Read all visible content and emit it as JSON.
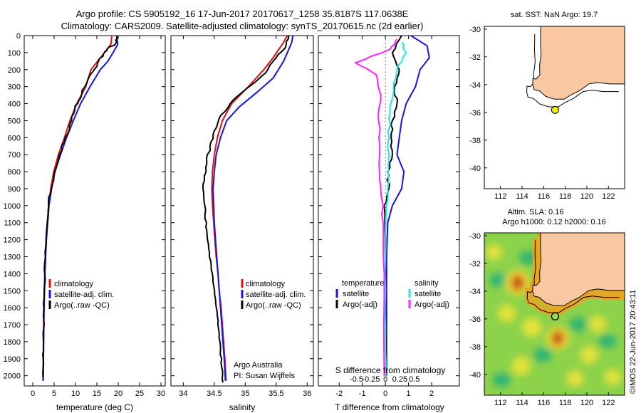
{
  "header": {
    "line1": "Argo profile: CS 5905192_16 17-Jun-2017 20170617_1258 35.8187S 117.0638E",
    "line2": "Climatology: CARS2009. Satellite-adjusted climatology: synTS_20170615.nc (2d earlier)"
  },
  "colors": {
    "climatology": "#e01010",
    "satellite": "#1515e0",
    "argo": "#000000",
    "salinity_sat": "#22e8e8",
    "salinity_argo": "#ff22ff",
    "land": "#fac8a0",
    "float_marker": "#f2f000"
  },
  "chart_data": [
    {
      "type": "line",
      "id": "temperature-panel",
      "xlabel": "temperature (deg C)",
      "xlim": [
        -2,
        31
      ],
      "ylim": [
        0,
        2060
      ],
      "y_inverted": true,
      "xticks": [
        "0",
        "5",
        "10",
        "15",
        "20",
        "25",
        "30"
      ],
      "yticks": [
        "0",
        "100",
        "200",
        "300",
        "400",
        "500",
        "600",
        "700",
        "800",
        "900",
        "1000",
        "1100",
        "1200",
        "1300",
        "1400",
        "1500",
        "1600",
        "1700",
        "1800",
        "1900",
        "2000"
      ],
      "legend": [
        "climatology",
        "satellite-adj. clim.",
        "Argo(..raw -QC)"
      ],
      "series": [
        {
          "name": "climatology",
          "color": "#e01010",
          "points": [
            [
              18.5,
              0
            ],
            [
              18.3,
              50
            ],
            [
              16.8,
              100
            ],
            [
              15.2,
              150
            ],
            [
              13.6,
              200
            ],
            [
              12.4,
              300
            ],
            [
              10.3,
              400
            ],
            [
              8.7,
              500
            ],
            [
              7.4,
              600
            ],
            [
              6.0,
              700
            ],
            [
              4.9,
              800
            ],
            [
              4.2,
              900
            ],
            [
              3.7,
              1000
            ],
            [
              3.4,
              1100
            ],
            [
              3.1,
              1200
            ],
            [
              2.95,
              1300
            ],
            [
              2.8,
              1400
            ],
            [
              2.7,
              1500
            ],
            [
              2.6,
              1600
            ],
            [
              2.5,
              1800
            ],
            [
              2.45,
              1900
            ],
            [
              2.4,
              2030
            ]
          ]
        },
        {
          "name": "satellite-adj. clim.",
          "color": "#1515e0",
          "points": [
            [
              19.6,
              0
            ],
            [
              19.9,
              50
            ],
            [
              18.8,
              100
            ],
            [
              17.6,
              150
            ],
            [
              15.8,
              200
            ],
            [
              13.4,
              300
            ],
            [
              11.2,
              400
            ],
            [
              9.5,
              500
            ],
            [
              7.9,
              600
            ],
            [
              6.5,
              700
            ],
            [
              5.2,
              800
            ],
            [
              4.4,
              900
            ],
            [
              3.8,
              1000
            ],
            [
              3.5,
              1100
            ],
            [
              3.2,
              1200
            ],
            [
              3.0,
              1300
            ],
            [
              2.85,
              1400
            ],
            [
              2.75,
              1500
            ],
            [
              2.65,
              1600
            ],
            [
              2.55,
              1800
            ],
            [
              2.5,
              1900
            ],
            [
              2.45,
              2030
            ]
          ]
        },
        {
          "name": "Argo(..raw -QC)",
          "color": "#000000",
          "points": [
            [
              19.8,
              5
            ],
            [
              19.3,
              50
            ],
            [
              17.4,
              80
            ],
            [
              16.5,
              110
            ],
            [
              15.4,
              150
            ],
            [
              14.1,
              210
            ],
            [
              12.2,
              300
            ],
            [
              10.6,
              390
            ],
            [
              9.9,
              420
            ],
            [
              9.1,
              500
            ],
            [
              7.6,
              600
            ],
            [
              6.2,
              700
            ],
            [
              5.1,
              800
            ],
            [
              4.3,
              900
            ],
            [
              3.7,
              1000
            ],
            [
              3.4,
              1100
            ],
            [
              3.1,
              1200
            ],
            [
              2.95,
              1300
            ],
            [
              2.8,
              1400
            ],
            [
              2.7,
              1500
            ],
            [
              2.6,
              1600
            ],
            [
              2.5,
              1800
            ],
            [
              2.45,
              1900
            ],
            [
              2.4,
              2010
            ]
          ]
        }
      ]
    },
    {
      "type": "line",
      "id": "salinity-panel",
      "xlabel": "salinity",
      "xlim": [
        33.8,
        36.1
      ],
      "ylim": [
        0,
        2060
      ],
      "y_inverted": true,
      "xticks": [
        "34",
        "34.5",
        "35",
        "35.5",
        "36"
      ],
      "legend": [
        "climatology",
        "satellite-adj. clim.",
        "Argo(..raw -QC)"
      ],
      "credit": [
        "Argo Australia",
        "PI: Susan Wijffels"
      ],
      "series": [
        {
          "name": "climatology",
          "color": "#e01010",
          "points": [
            [
              35.68,
              0
            ],
            [
              35.6,
              50
            ],
            [
              35.45,
              130
            ],
            [
              35.3,
              200
            ],
            [
              35.05,
              300
            ],
            [
              34.78,
              400
            ],
            [
              34.63,
              500
            ],
            [
              34.55,
              600
            ],
            [
              34.5,
              700
            ],
            [
              34.47,
              800
            ],
            [
              34.46,
              900
            ],
            [
              34.47,
              1000
            ],
            [
              34.49,
              1100
            ],
            [
              34.51,
              1200
            ],
            [
              34.53,
              1300
            ],
            [
              34.56,
              1400
            ],
            [
              34.58,
              1500
            ],
            [
              34.61,
              1600
            ],
            [
              34.63,
              1700
            ],
            [
              34.65,
              1800
            ],
            [
              34.67,
              1900
            ],
            [
              34.69,
              2030
            ]
          ]
        },
        {
          "name": "satellite-adj. clim.",
          "color": "#1515e0",
          "points": [
            [
              35.77,
              0
            ],
            [
              35.75,
              40
            ],
            [
              35.62,
              150
            ],
            [
              35.45,
              250
            ],
            [
              35.2,
              330
            ],
            [
              34.9,
              420
            ],
            [
              34.7,
              500
            ],
            [
              34.6,
              600
            ],
            [
              34.53,
              700
            ],
            [
              34.5,
              800
            ],
            [
              34.48,
              900
            ],
            [
              34.49,
              1000
            ],
            [
              34.5,
              1100
            ],
            [
              34.52,
              1200
            ],
            [
              34.54,
              1300
            ],
            [
              34.56,
              1400
            ],
            [
              34.58,
              1500
            ],
            [
              34.6,
              1600
            ],
            [
              34.62,
              1700
            ],
            [
              34.64,
              1800
            ],
            [
              34.66,
              1900
            ],
            [
              34.68,
              2030
            ]
          ]
        },
        {
          "name": "Argo(..raw -QC)",
          "color": "#000000",
          "points": [
            [
              35.7,
              0
            ],
            [
              35.65,
              70
            ],
            [
              35.5,
              130
            ],
            [
              35.33,
              220
            ],
            [
              35.1,
              290
            ],
            [
              34.8,
              380
            ],
            [
              34.6,
              470
            ],
            [
              34.5,
              560
            ],
            [
              34.43,
              650
            ],
            [
              34.38,
              750
            ],
            [
              34.34,
              850
            ],
            [
              34.33,
              950
            ],
            [
              34.35,
              1050
            ],
            [
              34.38,
              1150
            ],
            [
              34.41,
              1250
            ],
            [
              34.45,
              1350
            ],
            [
              34.48,
              1450
            ],
            [
              34.52,
              1550
            ],
            [
              34.55,
              1650
            ],
            [
              34.58,
              1750
            ],
            [
              34.6,
              1850
            ],
            [
              34.62,
              1950
            ],
            [
              34.64,
              2040
            ]
          ]
        }
      ]
    },
    {
      "type": "line",
      "id": "difference-panel",
      "xlabel": "T difference from climatology",
      "xlim": [
        -2.9,
        3.2
      ],
      "ylim": [
        0,
        2060
      ],
      "y_inverted": true,
      "xticks": [
        "-2",
        "-1",
        "0",
        "1",
        "2"
      ],
      "s_label": "S difference from climatology",
      "s_ticks": [
        "-0.5",
        "-0.25",
        "0",
        "0.25",
        "0.5"
      ],
      "legend": {
        "temperature_head": "temperature",
        "salinity_head": "salinity",
        "temp_sat": "satellite",
        "temp_argo": "Argo(-adj)",
        "sal_sat": "satellite",
        "sal_argo": "Argo(-adj)"
      },
      "series": [
        {
          "name": "T satellite",
          "color": "#1515e0",
          "points": [
            [
              1.1,
              0
            ],
            [
              1.8,
              60
            ],
            [
              1.9,
              130
            ],
            [
              1.5,
              200
            ],
            [
              1.3,
              300
            ],
            [
              0.9,
              400
            ],
            [
              0.7,
              500
            ],
            [
              0.6,
              600
            ],
            [
              0.5,
              700
            ],
            [
              0.8,
              800
            ],
            [
              0.7,
              900
            ],
            [
              0.3,
              1000
            ],
            [
              0.1,
              1100
            ],
            [
              0.05,
              1300
            ],
            [
              0.05,
              2000
            ]
          ]
        },
        {
          "name": "T Argo(-adj)",
          "color": "#000000",
          "points": [
            [
              0.7,
              0
            ],
            [
              0.3,
              100
            ],
            [
              0.6,
              200
            ],
            [
              0.4,
              300
            ],
            [
              0.5,
              400
            ],
            [
              0.3,
              500
            ],
            [
              0.25,
              600
            ],
            [
              0.3,
              700
            ],
            [
              0.1,
              800
            ],
            [
              0.15,
              900
            ],
            [
              -0.05,
              1000
            ],
            [
              0.0,
              1200
            ],
            [
              0.02,
              2000
            ]
          ]
        },
        {
          "name": "S satellite",
          "color": "#22e8e8",
          "points": [
            [
              0.7,
              40
            ],
            [
              0.9,
              100
            ],
            [
              0.5,
              200
            ],
            [
              0.35,
              300
            ],
            [
              0.2,
              450
            ],
            [
              0.15,
              600
            ],
            [
              0.12,
              800
            ],
            [
              0.05,
              1000
            ],
            [
              0.0,
              1300
            ],
            [
              0.0,
              1700
            ],
            [
              0.02,
              2000
            ]
          ]
        },
        {
          "name": "S Argo(-adj)",
          "color": "#ff22ff",
          "points": [
            [
              0.5,
              20
            ],
            [
              0.2,
              80
            ],
            [
              -1.3,
              160
            ],
            [
              -0.4,
              230
            ],
            [
              -0.2,
              350
            ],
            [
              -0.3,
              500
            ],
            [
              -0.25,
              700
            ],
            [
              -0.2,
              900
            ],
            [
              -0.1,
              1100
            ],
            [
              -0.05,
              1400
            ],
            [
              -0.05,
              2000
            ]
          ]
        }
      ]
    },
    {
      "type": "map",
      "id": "sst-map",
      "title": "sat. SST: NaN Argo: 19.7",
      "xlim": [
        110.5,
        123.5
      ],
      "ylim": [
        -41.5,
        -29.8
      ],
      "xticks": [
        "112",
        "114",
        "116",
        "118",
        "120",
        "122"
      ],
      "yticks": [
        "-30",
        "-32",
        "-34",
        "-36",
        "-38",
        "-40"
      ],
      "float": {
        "lon": 117.06,
        "lat": -35.82
      }
    },
    {
      "type": "heatmap",
      "id": "sla-map",
      "title_line1": "Altim. SLA: 0.16",
      "title_line2": "Argo h1000: 0.12 h2000: 0.16",
      "xlim": [
        110.5,
        123.5
      ],
      "ylim": [
        -41.5,
        -29.8
      ],
      "xticks": [
        "112",
        "114",
        "116",
        "118",
        "120",
        "122"
      ],
      "yticks": [
        "-30",
        "-32",
        "-34",
        "-36",
        "-38",
        "-40"
      ],
      "float": {
        "lon": 117.06,
        "lat": -35.82
      },
      "blobs": [
        {
          "lon": 113.6,
          "lat": -33.4,
          "v": 1.0
        },
        {
          "lon": 117.3,
          "lat": -37.4,
          "v": 0.85
        },
        {
          "lon": 114.9,
          "lat": -36.6,
          "v": 0.5
        },
        {
          "lon": 112.6,
          "lat": -35.6,
          "v": 0.35
        },
        {
          "lon": 113.9,
          "lat": -39.4,
          "v": 0.45
        },
        {
          "lon": 120.2,
          "lat": -38.6,
          "v": 0.4
        },
        {
          "lon": 118.9,
          "lat": -40.3,
          "v": 0.3
        },
        {
          "lon": 122.4,
          "lat": -40.2,
          "v": 0.25
        },
        {
          "lon": 111.4,
          "lat": -31.2,
          "v": 0.2
        },
        {
          "lon": 121.0,
          "lat": -36.4,
          "v": 0.3
        }
      ],
      "lows": [
        {
          "lon": 111.8,
          "lat": -33.2
        },
        {
          "lon": 115.9,
          "lat": -38.6
        },
        {
          "lon": 112.1,
          "lat": -40.4
        },
        {
          "lon": 119.2,
          "lat": -36.4
        },
        {
          "lon": 121.9,
          "lat": -37.6
        },
        {
          "lon": 114.6,
          "lat": -31.6
        }
      ]
    }
  ],
  "credit_vertical": "©IMOS 22-Jun-2017 20:43:11"
}
